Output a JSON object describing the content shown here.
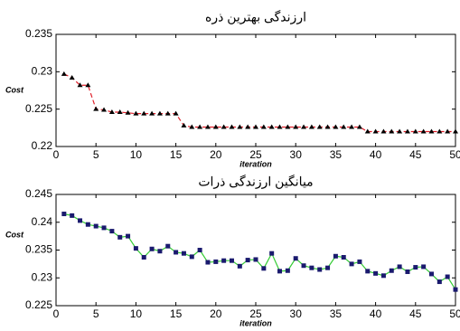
{
  "chart_data": [
    {
      "type": "line",
      "title": "ارزندگی بهترین ذره",
      "xlabel": "iteration",
      "ylabel": "Cost",
      "xlim": [
        0,
        50
      ],
      "ylim": [
        0.22,
        0.235
      ],
      "xticks": [
        0,
        5,
        10,
        15,
        20,
        25,
        30,
        35,
        40,
        45,
        50
      ],
      "yticks": [
        0.22,
        0.225,
        0.23,
        0.235
      ],
      "grid": false,
      "x": [
        1,
        2,
        3,
        4,
        5,
        6,
        7,
        8,
        9,
        10,
        11,
        12,
        13,
        14,
        15,
        16,
        17,
        18,
        19,
        20,
        21,
        22,
        23,
        24,
        25,
        26,
        27,
        28,
        29,
        30,
        31,
        32,
        33,
        34,
        35,
        36,
        37,
        38,
        39,
        40,
        41,
        42,
        43,
        44,
        45,
        46,
        47,
        48,
        49,
        50
      ],
      "series": [
        {
          "name": null,
          "color": "#e0202a",
          "line_style": "dashed",
          "marker": "triangle",
          "marker_color": "#000000",
          "values": [
            0.2297,
            0.2292,
            0.2282,
            0.2282,
            0.225,
            0.2249,
            0.2246,
            0.2246,
            0.2245,
            0.2244,
            0.2244,
            0.2244,
            0.2244,
            0.2244,
            0.2244,
            0.2228,
            0.2226,
            0.2226,
            0.2226,
            0.2226,
            0.2226,
            0.2226,
            0.2226,
            0.2226,
            0.2226,
            0.2226,
            0.2226,
            0.2226,
            0.2226,
            0.2226,
            0.2226,
            0.2226,
            0.2226,
            0.2226,
            0.2226,
            0.2226,
            0.2226,
            0.2226,
            0.222,
            0.222,
            0.222,
            0.222,
            0.222,
            0.222,
            0.222,
            0.222,
            0.222,
            0.222,
            0.222,
            0.222
          ]
        }
      ]
    },
    {
      "type": "line",
      "title": "میانگین ارزندگی ذرات",
      "xlabel": "iteration",
      "ylabel": "Cost",
      "xlim": [
        0,
        50
      ],
      "ylim": [
        0.225,
        0.245
      ],
      "xticks": [
        0,
        5,
        10,
        15,
        20,
        25,
        30,
        35,
        40,
        45,
        50
      ],
      "yticks": [
        0.225,
        0.23,
        0.235,
        0.24,
        0.245
      ],
      "grid": false,
      "x": [
        1,
        2,
        3,
        4,
        5,
        6,
        7,
        8,
        9,
        10,
        11,
        12,
        13,
        14,
        15,
        16,
        17,
        18,
        19,
        20,
        21,
        22,
        23,
        24,
        25,
        26,
        27,
        28,
        29,
        30,
        31,
        32,
        33,
        34,
        35,
        36,
        37,
        38,
        39,
        40,
        41,
        42,
        43,
        44,
        45,
        46,
        47,
        48,
        49,
        50
      ],
      "series": [
        {
          "name": null,
          "color": "#33cc33",
          "line_style": "solid",
          "marker": "square",
          "marker_color": "#1a1a6e",
          "values": [
            0.2415,
            0.2412,
            0.2403,
            0.2396,
            0.2393,
            0.239,
            0.2384,
            0.2373,
            0.2375,
            0.2353,
            0.2337,
            0.2352,
            0.2348,
            0.2357,
            0.2346,
            0.2344,
            0.2338,
            0.235,
            0.2328,
            0.2329,
            0.2331,
            0.2331,
            0.2321,
            0.2332,
            0.2333,
            0.2317,
            0.2344,
            0.2312,
            0.2313,
            0.2335,
            0.2322,
            0.2318,
            0.2315,
            0.2318,
            0.2339,
            0.2337,
            0.2325,
            0.2329,
            0.2312,
            0.2308,
            0.2304,
            0.2313,
            0.232,
            0.2311,
            0.2319,
            0.232,
            0.2307,
            0.2293,
            0.2302,
            0.2279
          ]
        }
      ]
    }
  ]
}
